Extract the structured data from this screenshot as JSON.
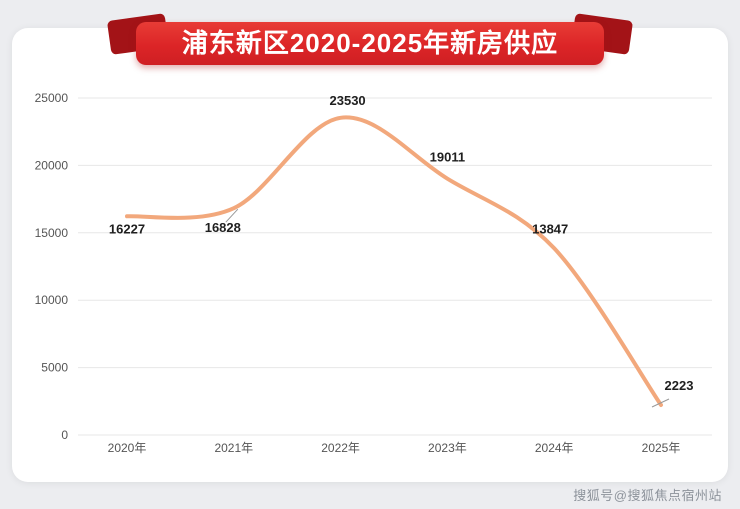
{
  "banner": {
    "title": "浦东新区2020-2025年新房供应"
  },
  "watermark": "搜狐号@搜狐焦点宿州站",
  "chart_data": {
    "type": "line",
    "title": "浦东新区2020-2025年新房供应",
    "categories": [
      "2020年",
      "2021年",
      "2022年",
      "2023年",
      "2024年",
      "2025年"
    ],
    "values": [
      16227,
      16828,
      23530,
      19011,
      13847,
      2223
    ],
    "xlabel": "",
    "ylabel": "",
    "ylim": [
      0,
      25000
    ],
    "yticks": [
      0,
      5000,
      10000,
      15000,
      20000,
      25000
    ],
    "grid": true,
    "legend": false,
    "smooth": true,
    "line_color": "#f2a87c",
    "label_color": "#1f1f1f",
    "axis_text_color": "#555555",
    "grid_color": "#e7e7e7",
    "leader_line_color": "#999999"
  }
}
